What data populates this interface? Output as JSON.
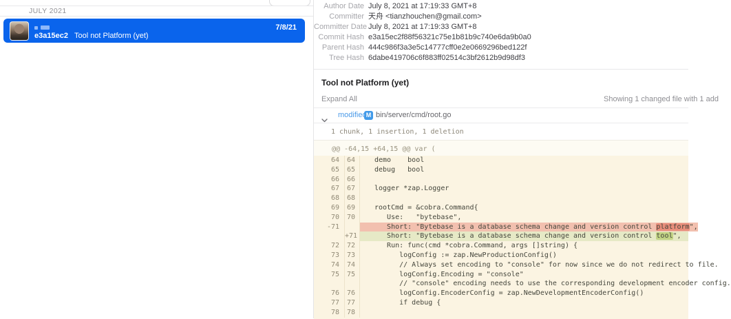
{
  "colors": {
    "selected_commit_blue": "#0a64ec",
    "modified_blue": "#4a9ae8",
    "diff_background": "#fbf4e2",
    "deletion_bg": "#f2c0af",
    "deletion_word_bg": "#e88e7b",
    "addition_bg": "#e6e9c6",
    "addition_word_bg": "#c2d385"
  },
  "left_panel": {
    "section_header": "JULY 2021",
    "commit": {
      "hash": "e3a15ec2",
      "message": "Tool not Platform (yet)",
      "date": "7/8/21"
    }
  },
  "details": {
    "fields": [
      {
        "label": "Author Date",
        "value": "July 8, 2021 at 17:19:33 GMT+8"
      },
      {
        "label": "Committer",
        "value": "天舟 <tianzhouchen@gmail.com>"
      },
      {
        "label": "Committer Date",
        "value": "July 8, 2021 at 17:19:33 GMT+8"
      },
      {
        "label": "Commit Hash",
        "value": "e3a15ec2f88f56321c75e1b81b9c740e6da9b0a0"
      },
      {
        "label": "Parent Hash",
        "value": "444c986f3a3e5c14777cff0e2e0669296bed122f"
      },
      {
        "label": "Tree Hash",
        "value": "6dabe419706c6f883ff02514c3bf2612b9d98df3"
      }
    ]
  },
  "main": {
    "commit_title": "Tool not Platform (yet)",
    "expand_all_label": "Expand All",
    "showing_text": "Showing 1 changed file with 1 add",
    "file": {
      "status": "modified",
      "badge": "M",
      "path": "bin/server/cmd/root.go",
      "stats": "1 chunk, 1 insertion, 1 deletion",
      "hunk_header": "@@ -64,15 +64,15 @@ var ("
    }
  },
  "diff": {
    "lines": [
      {
        "old": "64",
        "new": "64",
        "type": "ctx",
        "text": "demo    bool"
      },
      {
        "old": "65",
        "new": "65",
        "type": "ctx",
        "text": "debug   bool"
      },
      {
        "old": "66",
        "new": "66",
        "type": "ctx",
        "text": ""
      },
      {
        "old": "67",
        "new": "67",
        "type": "ctx",
        "text": "logger *zap.Logger"
      },
      {
        "old": "68",
        "new": "68",
        "type": "ctx",
        "text": ""
      },
      {
        "old": "69",
        "new": "69",
        "type": "ctx",
        "text": "rootCmd = &cobra.Command{"
      },
      {
        "old": "70",
        "new": "70",
        "type": "ctx",
        "text": "   Use:   \"bytebase\","
      },
      {
        "old": "-71",
        "new": "",
        "type": "del",
        "pre": "   Short: \"Bytebase is a database schema change and version control ",
        "hl": "platform",
        "post": "\","
      },
      {
        "old": "",
        "new": "+71",
        "type": "add",
        "pre": "   Short: \"Bytebase is a database schema change and version control ",
        "hl": "tool",
        "post": "\","
      },
      {
        "old": "72",
        "new": "72",
        "type": "ctx",
        "text": "   Run: func(cmd *cobra.Command, args []string) {"
      },
      {
        "old": "73",
        "new": "73",
        "type": "ctx",
        "text": "      logConfig := zap.NewProductionConfig()"
      },
      {
        "old": "74",
        "new": "74",
        "type": "ctx",
        "text": "      // Always set encoding to \"console\" for now since we do not redirect to file."
      },
      {
        "old": "75",
        "new": "75",
        "type": "ctx",
        "text": "      logConfig.Encoding = \"console\""
      },
      {
        "old": "",
        "new": "",
        "type": "ctx",
        "text": "      // \"console\" encoding needs to use the corresponding development encoder config."
      },
      {
        "old": "76",
        "new": "76",
        "type": "ctx",
        "text": "      logConfig.EncoderConfig = zap.NewDevelopmentEncoderConfig()"
      },
      {
        "old": "77",
        "new": "77",
        "type": "ctx",
        "text": "      if debug {"
      },
      {
        "old": "78",
        "new": "78",
        "type": "ctx",
        "text": ""
      }
    ]
  }
}
